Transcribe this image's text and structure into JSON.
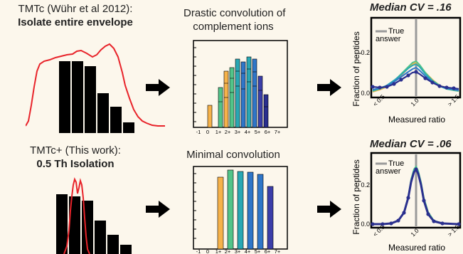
{
  "top_row": {
    "left_title": "TMTc (Wühr et al 2012):",
    "left_subtitle": "Isolate entire envelope",
    "middle_title_line1": "Drastic convolution of",
    "middle_title_line2": "complement ions",
    "right_title": "Median CV = .16"
  },
  "bottom_row": {
    "left_title": "TMTc+ (This work):",
    "left_subtitle": "0.5 Th Isolation",
    "middle_title": "Minimal convolution",
    "right_title": "Median CV = .06"
  },
  "complement_axis": {
    "tick_labels": [
      "-1",
      "0",
      "1+",
      "2+",
      "3+",
      "4+",
      "5+",
      "6+",
      "7+"
    ]
  },
  "cv_plot": {
    "ylabel": "Fraction of peptides",
    "xlabel": "Measured ratio",
    "ytick_top": "0.2",
    "ytick_bottom": "0.0",
    "xticks": [
      "< 0.5",
      "1.0",
      "> 1.5"
    ],
    "legend_line1": "True",
    "legend_line2": "answer"
  },
  "colors": {
    "background": "#fcf7ec",
    "envelope_red": "#e8232a",
    "orange": "#f6b24a",
    "green": "#52c489",
    "teal": "#29a8b4",
    "blue": "#2f76c8",
    "indigo": "#3b3ea9",
    "navy": "#2a2f8e",
    "true_answer_gray": "#9a9a9a"
  },
  "icons": [
    "right-arrow-icon"
  ]
}
